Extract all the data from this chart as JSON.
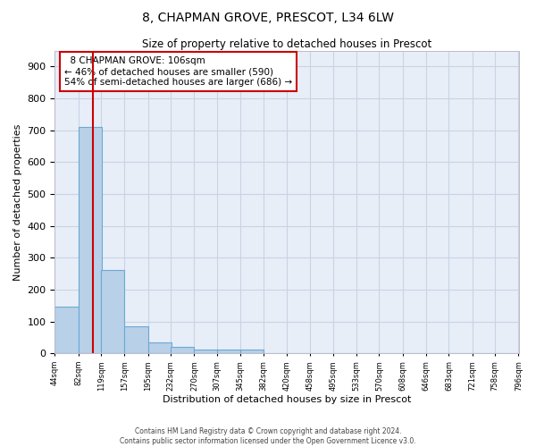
{
  "title": "8, CHAPMAN GROVE, PRESCOT, L34 6LW",
  "subtitle": "Size of property relative to detached houses in Prescot",
  "xlabel": "Distribution of detached houses by size in Prescot",
  "ylabel": "Number of detached properties",
  "footer_line1": "Contains HM Land Registry data © Crown copyright and database right 2024.",
  "footer_line2": "Contains public sector information licensed under the Open Government Licence v3.0.",
  "annotation_line1": "8 CHAPMAN GROVE: 106sqm",
  "annotation_line2": "← 46% of detached houses are smaller (590)",
  "annotation_line3": "54% of semi-detached houses are larger (686) →",
  "property_size": 106,
  "bin_edges": [
    44,
    82,
    119,
    157,
    195,
    232,
    270,
    307,
    345,
    382,
    420,
    458,
    495,
    533,
    570,
    608,
    646,
    683,
    721,
    758,
    796
  ],
  "bin_counts": [
    148,
    710,
    263,
    85,
    35,
    21,
    12,
    12,
    11,
    0,
    0,
    0,
    0,
    0,
    0,
    0,
    0,
    0,
    0,
    0
  ],
  "bar_color": "#b8d0e8",
  "bar_edge_color": "#6aaad4",
  "red_line_color": "#cc0000",
  "annotation_box_color": "#cc0000",
  "grid_color": "#c8d4e4",
  "background_color": "#e8eef8",
  "ylim": [
    0,
    950
  ],
  "yticks": [
    0,
    100,
    200,
    300,
    400,
    500,
    600,
    700,
    800,
    900
  ]
}
